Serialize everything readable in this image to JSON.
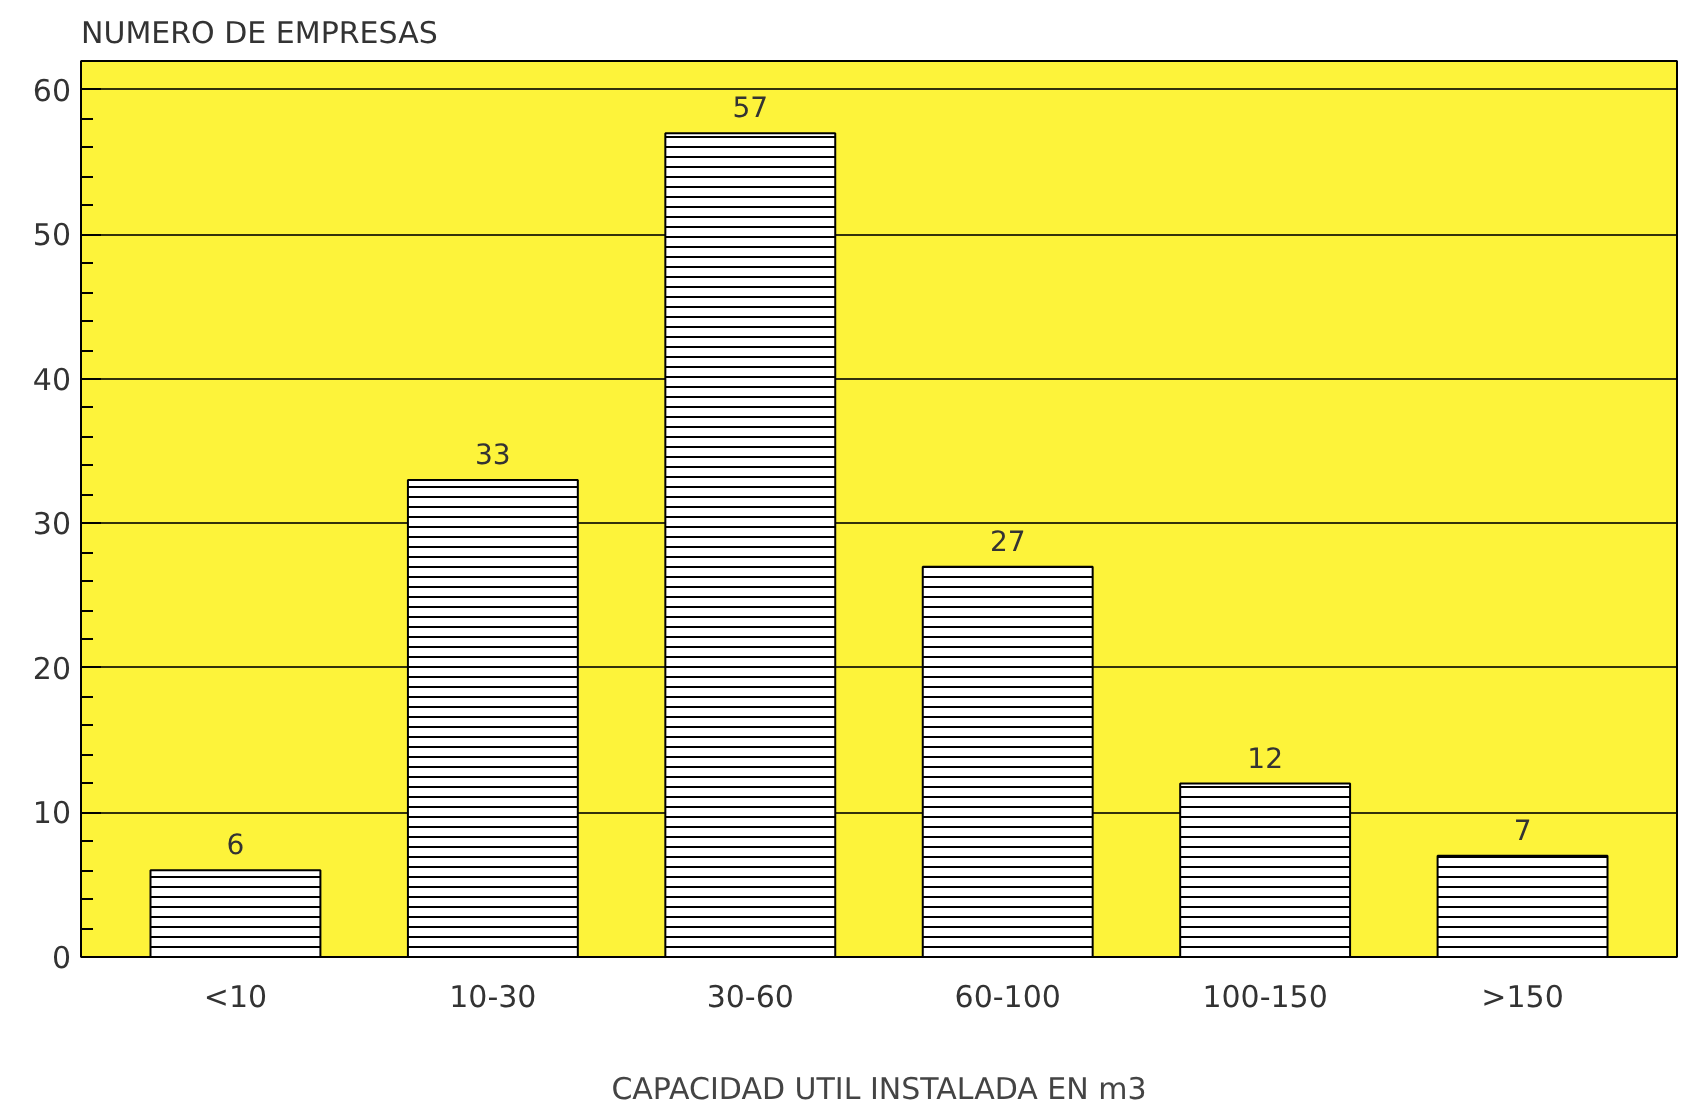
{
  "chart_data": {
    "type": "bar",
    "ylabel": "NUMERO DE EMPRESAS",
    "xlabel": "CAPACIDAD UTIL INSTALADA EN m3",
    "categories": [
      "<10",
      "10-30",
      "30-60",
      "60-100",
      "100-150",
      ">150"
    ],
    "values": [
      6,
      33,
      57,
      27,
      12,
      7
    ],
    "color": "#ffffff",
    "data_labels": true,
    "ylim": [
      0,
      62
    ],
    "yticks": [
      0,
      10,
      20,
      30,
      40,
      50,
      60
    ],
    "grid": "y"
  }
}
